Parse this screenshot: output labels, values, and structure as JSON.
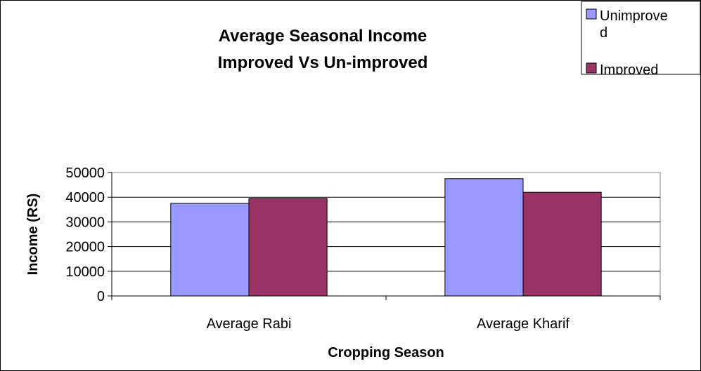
{
  "chart_data": {
    "type": "bar",
    "title": [
      "Average Seasonal Income",
      "Improved Vs Un-improved"
    ],
    "xlabel": "Cropping Season",
    "ylabel": "Income (RS)",
    "categories": [
      "Average Rabi",
      "Average Kharif"
    ],
    "series": [
      {
        "name": "Unimproved",
        "values": [
          37500,
          47500
        ],
        "color": "#9999ff"
      },
      {
        "name": "Improved",
        "values": [
          39500,
          42000
        ],
        "color": "#993366"
      }
    ],
    "ylim": [
      0,
      50000
    ],
    "yticks": [
      0,
      10000,
      20000,
      30000,
      40000,
      50000
    ],
    "ytick_labels": [
      "0",
      "10000",
      "20000",
      "30000",
      "40000",
      "50000"
    ],
    "grid": true,
    "legend_position": "top-right"
  }
}
